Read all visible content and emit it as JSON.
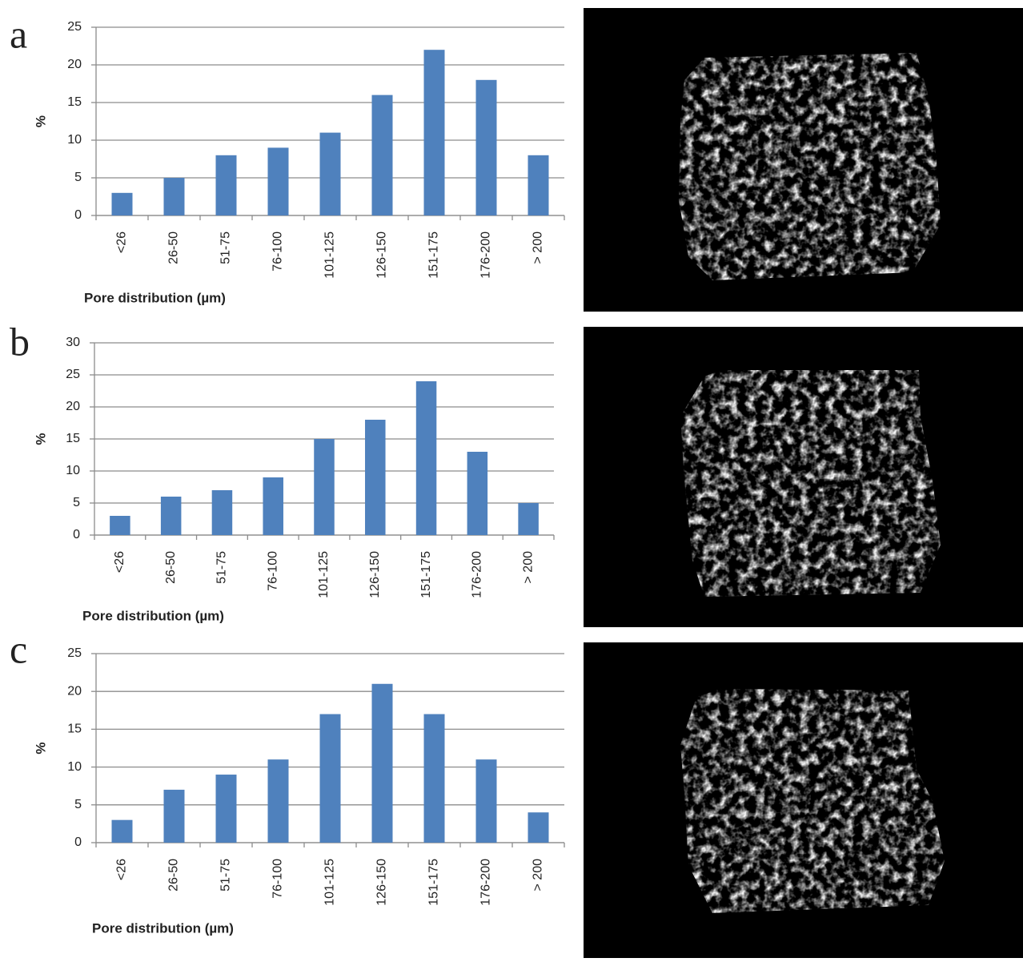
{
  "chart_data": [
    {
      "type": "bar",
      "label": "a",
      "x_label": "Pore distribution (µm)",
      "y_label": "%",
      "categories": [
        "<26",
        "26-50",
        "51-75",
        "76-100",
        "101-125",
        "126-150",
        "151-175",
        "176-200",
        "> 200"
      ],
      "values": [
        3,
        5,
        8,
        9,
        11,
        16,
        22,
        18,
        8
      ],
      "color": "#4f81bd",
      "ylim": [
        0,
        25
      ],
      "yticks": [
        0,
        5,
        10,
        15,
        20,
        25
      ],
      "grid": true
    },
    {
      "type": "bar",
      "label": "b",
      "x_label": "Pore distribution (µm)",
      "y_label": "%",
      "categories": [
        "<26",
        "26-50",
        "51-75",
        "76-100",
        "101-125",
        "126-150",
        "151-175",
        "176-200",
        "> 200"
      ],
      "values": [
        3,
        6,
        7,
        9,
        15,
        18,
        24,
        13,
        5
      ],
      "color": "#4f81bd",
      "ylim": [
        0,
        30
      ],
      "yticks": [
        0,
        5,
        10,
        15,
        20,
        25,
        30
      ],
      "grid": true
    },
    {
      "type": "bar",
      "label": "c",
      "x_label": "Pore distribution (µm)",
      "y_label": "%",
      "categories": [
        "<26",
        "26-50",
        "51-75",
        "76-100",
        "101-125",
        "126-150",
        "151-175",
        "176-200",
        "> 200"
      ],
      "values": [
        3,
        7,
        9,
        11,
        17,
        21,
        17,
        11,
        4
      ],
      "color": "#4f81bd",
      "ylim": [
        0,
        25
      ],
      "yticks": [
        0,
        5,
        10,
        15,
        20,
        25
      ],
      "grid": true
    }
  ]
}
